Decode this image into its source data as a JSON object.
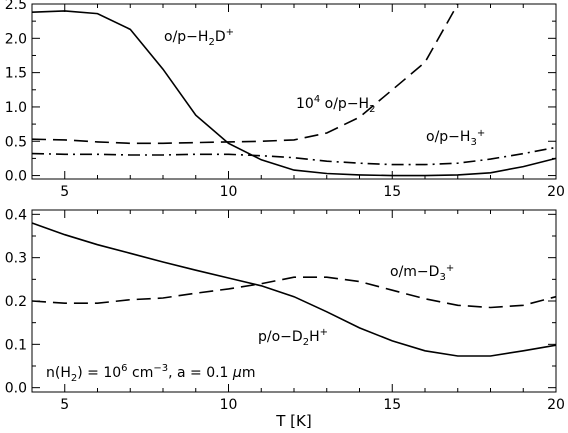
{
  "chart_data": [
    {
      "type": "line",
      "title": "",
      "xlabel": "",
      "ylabel": "",
      "xlim": [
        4,
        20
      ],
      "ylim": [
        -0.05,
        2.5
      ],
      "xticks": [
        5,
        10,
        15,
        20
      ],
      "xtick_labels": [
        "5",
        "10",
        "15",
        "20"
      ],
      "yticks": [
        0.0,
        0.5,
        1.0,
        1.5,
        2.0,
        2.5
      ],
      "ytick_labels": [
        "0.0",
        "0.5",
        "1.0",
        "1.5",
        "2.0",
        "2.5"
      ],
      "grid": false,
      "series": [
        {
          "name": "o/p-H₂D⁺",
          "style": "solid",
          "x": [
            4,
            5,
            6,
            7,
            8,
            9,
            10,
            11,
            12,
            13,
            14,
            15,
            16,
            17,
            18,
            19,
            20
          ],
          "y": [
            2.38,
            2.4,
            2.36,
            2.13,
            1.55,
            0.88,
            0.47,
            0.23,
            0.08,
            0.03,
            0.01,
            0.0,
            0.0,
            0.01,
            0.04,
            0.13,
            0.25
          ]
        },
        {
          "name": "10⁴ o/p-H₂",
          "style": "dashed",
          "x": [
            4,
            5,
            6,
            7,
            8,
            9,
            10,
            11,
            12,
            13,
            14,
            15,
            16,
            17
          ],
          "y": [
            0.53,
            0.52,
            0.49,
            0.47,
            0.47,
            0.48,
            0.49,
            0.5,
            0.52,
            0.62,
            0.85,
            1.25,
            1.65,
            2.5
          ]
        },
        {
          "name": "o/p-H₃⁺",
          "style": "dashdot",
          "x": [
            4,
            5,
            6,
            7,
            8,
            9,
            10,
            11,
            12,
            13,
            14,
            15,
            16,
            17,
            18,
            19,
            20
          ],
          "y": [
            0.32,
            0.31,
            0.31,
            0.3,
            0.3,
            0.31,
            0.31,
            0.29,
            0.26,
            0.21,
            0.18,
            0.16,
            0.16,
            0.18,
            0.24,
            0.32,
            0.41
          ]
        }
      ],
      "annotations": {
        "h2d": {
          "main": "o/p−H",
          "sub": "2",
          "mid": "D",
          "sup": "+"
        },
        "h2": {
          "pre": "10",
          "pre_sup": "4",
          "main": " o/p−H",
          "sub": "2"
        },
        "h3": {
          "main": "o/p−H",
          "sub": "3",
          "sup": "+"
        }
      }
    },
    {
      "type": "line",
      "title": "",
      "xlabel": "T [K]",
      "ylabel": "",
      "xlim": [
        4,
        20
      ],
      "ylim": [
        -0.01,
        0.41
      ],
      "xticks": [
        5,
        10,
        15,
        20
      ],
      "xtick_labels": [
        "5",
        "10",
        "15",
        "20"
      ],
      "yticks": [
        0.0,
        0.1,
        0.2,
        0.3,
        0.4
      ],
      "ytick_labels": [
        "0.0",
        "0.1",
        "0.2",
        "0.3",
        "0.4"
      ],
      "grid": false,
      "series": [
        {
          "name": "p/o−D₂H⁺",
          "style": "solid",
          "x": [
            4,
            5,
            6,
            7,
            8,
            9,
            10,
            11,
            12,
            13,
            14,
            15,
            16,
            17,
            18,
            19,
            20
          ],
          "y": [
            0.38,
            0.353,
            0.33,
            0.31,
            0.29,
            0.271,
            0.253,
            0.235,
            0.21,
            0.175,
            0.138,
            0.108,
            0.085,
            0.073,
            0.073,
            0.085,
            0.098
          ]
        },
        {
          "name": "o/m−D₃⁺",
          "style": "dashed",
          "x": [
            4,
            5,
            6,
            7,
            8,
            9,
            10,
            11,
            12,
            13,
            14,
            15,
            16,
            17,
            18,
            19,
            20
          ],
          "y": [
            0.2,
            0.195,
            0.195,
            0.203,
            0.207,
            0.218,
            0.228,
            0.24,
            0.255,
            0.255,
            0.245,
            0.225,
            0.205,
            0.19,
            0.185,
            0.19,
            0.21
          ]
        }
      ],
      "annotations": {
        "d3": {
          "main": "o/m−D",
          "sub": "3",
          "sup": "+"
        },
        "d2h": {
          "main": "p/o−D",
          "sub": "2",
          "mid": "H",
          "sup": "+"
        },
        "cond": {
          "p1": "n(H",
          "p1_sub": "2",
          "p2": ") = 10",
          "p2_sup": "6",
          "p3": " cm",
          "p3_sup": "−3",
          "p4": ",  a = 0.1 ",
          "mu": "μ",
          "p5": "m"
        }
      }
    }
  ]
}
